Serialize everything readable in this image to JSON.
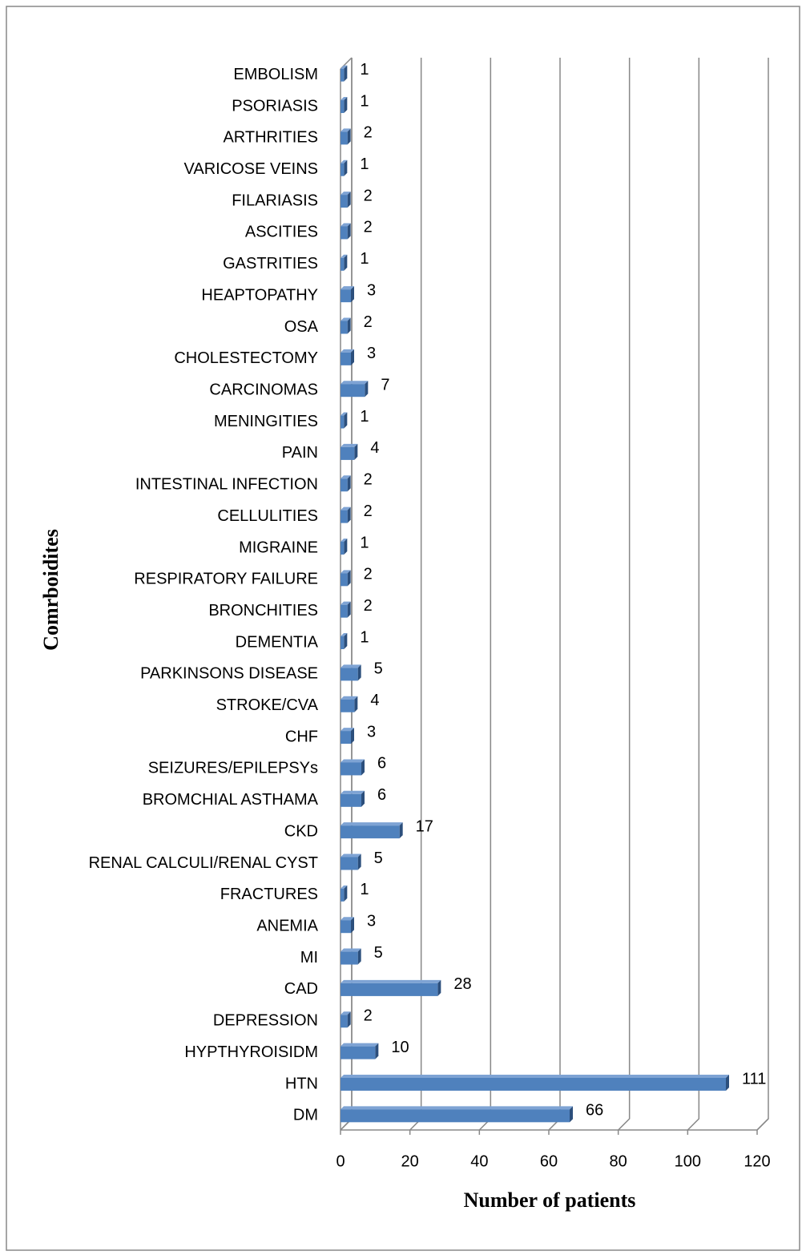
{
  "chart_data": {
    "type": "bar",
    "orientation": "horizontal",
    "x_label": "Number of patients",
    "y_label": "Comrboidites",
    "categories": [
      "DM",
      "HTN",
      "HYPTHYROISIDM",
      "DEPRESSION",
      "CAD",
      "MI",
      "ANEMIA",
      "FRACTURES",
      "RENAL CALCULI/RENAL CYST",
      "CKD",
      "BROMCHIAL ASTHAMA",
      "SEIZURES/EPILEPSYs",
      "CHF",
      "STROKE/CVA",
      "PARKINSONS DISEASE",
      "DEMENTIA",
      "BRONCHITIES",
      "RESPIRATORY FAILURE",
      "MIGRAINE",
      "CELLULITIES",
      "INTESTINAL INFECTION",
      "PAIN",
      "MENINGITIES",
      "CARCINOMAS",
      "CHOLESTECTOMY",
      "OSA",
      "HEAPTOPATHY",
      "GASTRITIES",
      "ASCITIES",
      "FILARIASIS",
      "VARICOSE VEINS",
      "ARTHRITIES",
      "PSORIASIS",
      "EMBOLISM"
    ],
    "values": [
      66,
      111,
      10,
      2,
      28,
      5,
      3,
      1,
      5,
      17,
      6,
      6,
      3,
      4,
      5,
      1,
      2,
      2,
      1,
      2,
      2,
      4,
      1,
      7,
      3,
      2,
      3,
      1,
      2,
      2,
      1,
      2,
      1,
      1
    ],
    "color": "#4f81bd",
    "xlim": [
      0,
      120
    ],
    "xticks": [
      0,
      20,
      40,
      60,
      80,
      100,
      120
    ],
    "grid": true
  }
}
